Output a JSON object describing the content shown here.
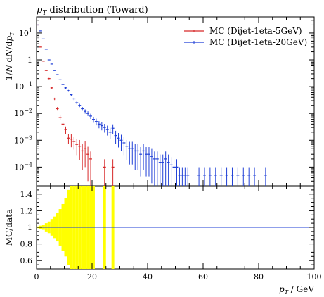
{
  "chart_data": {
    "type": "scatter",
    "title": "pT distribution (Toward)",
    "xlabel": "pT / GeV",
    "ylabel_main": "1/N dN/dpT",
    "ylabel_ratio": "MC/data",
    "xlim": [
      0,
      100
    ],
    "ylim_main": [
      2e-05,
      40
    ],
    "ylim_ratio": [
      0.5,
      1.5
    ],
    "y_scale_main": "log",
    "legend_position": "top-right",
    "x_tick_labels": [
      "0",
      "20",
      "40",
      "60",
      "80",
      "100"
    ],
    "y_tick_labels_main": [
      {
        "mant": "10",
        "exp": "1",
        "value": 10
      },
      {
        "mant": "1",
        "exp": "",
        "value": 1
      },
      {
        "mant": "10",
        "exp": "−1",
        "value": 0.1
      },
      {
        "mant": "10",
        "exp": "−2",
        "value": 0.01
      },
      {
        "mant": "10",
        "exp": "−3",
        "value": 0.001
      },
      {
        "mant": "10",
        "exp": "−4",
        "value": 0.0001
      }
    ],
    "y_tick_labels_ratio": [
      "1.4",
      "1.2",
      "1",
      "0.8",
      "0.6"
    ],
    "series": [
      {
        "name": "MC (Dijet-1eta-5GeV)",
        "color": "#d62728",
        "x": [
          0.5,
          1.5,
          2.5,
          3.5,
          4.5,
          5.5,
          6.5,
          7.5,
          8.5,
          9.5,
          10.5,
          11.5,
          12.5,
          13.5,
          14.5,
          15.5,
          16.5,
          17.5,
          18.5,
          19.5,
          24.5,
          27.5
        ],
        "y": [
          20,
          3.0,
          0.9,
          0.4,
          0.2,
          0.09,
          0.035,
          0.015,
          0.007,
          0.004,
          0.0025,
          0.0012,
          0.0011,
          0.0009,
          0.0007,
          0.0006,
          0.0004,
          0.0005,
          0.0003,
          0.0002,
          0.0001,
          0.0001
        ],
        "yerr_rel": [
          0.02,
          0.03,
          0.04,
          0.05,
          0.06,
          0.08,
          0.1,
          0.15,
          0.2,
          0.25,
          0.3,
          0.4,
          0.5,
          0.5,
          0.6,
          0.7,
          0.8,
          0.8,
          0.9,
          0.9,
          0.95,
          0.95
        ]
      },
      {
        "name": "MC (Dijet-1eta-20GeV)",
        "color": "#1f3fd6",
        "x": [
          0.5,
          1.5,
          2.5,
          3.5,
          4.5,
          5.5,
          6.5,
          7.5,
          8.5,
          9.5,
          10.5,
          11.5,
          12.5,
          13.5,
          14.5,
          15.5,
          16.5,
          17.5,
          18.5,
          19.5,
          20.5,
          21.5,
          22.5,
          23.5,
          24.5,
          25.5,
          26.5,
          27.5,
          28.5,
          29.5,
          30.5,
          31.5,
          32.5,
          33.5,
          34.5,
          35.5,
          36.5,
          37.5,
          38.5,
          39.5,
          40.5,
          41.5,
          42.5,
          43.5,
          44.5,
          45.5,
          46.5,
          47.5,
          48.5,
          49.5,
          50.5,
          51.5,
          52.5,
          53.5,
          54.5,
          58.5,
          60.5,
          62.5,
          64.5,
          66.5,
          68.5,
          70.5,
          72.5,
          74.5,
          76.5,
          78.5,
          82.5
        ],
        "y": [
          20,
          12,
          6,
          2.5,
          1.0,
          0.7,
          0.4,
          0.28,
          0.18,
          0.12,
          0.09,
          0.07,
          0.05,
          0.035,
          0.025,
          0.02,
          0.015,
          0.012,
          0.01,
          0.008,
          0.006,
          0.005,
          0.004,
          0.0035,
          0.003,
          0.0025,
          0.002,
          0.0028,
          0.0015,
          0.0012,
          0.001,
          0.0008,
          0.0006,
          0.0005,
          0.0005,
          0.0004,
          0.0004,
          0.0003,
          0.0004,
          0.0003,
          0.0003,
          0.00025,
          0.0002,
          0.0002,
          0.00015,
          0.00015,
          0.0002,
          0.00015,
          0.00012,
          0.0001,
          0.0001,
          5e-05,
          5e-05,
          5e-05,
          5e-05,
          5e-05,
          5e-05,
          5e-05,
          5e-05,
          5e-05,
          5e-05,
          5e-05,
          5e-05,
          5e-05,
          5e-05,
          5e-05,
          5e-05
        ],
        "yerr_rel": [
          0.01,
          0.01,
          0.01,
          0.02,
          0.02,
          0.03,
          0.03,
          0.04,
          0.05,
          0.06,
          0.07,
          0.08,
          0.09,
          0.1,
          0.12,
          0.14,
          0.16,
          0.18,
          0.2,
          0.22,
          0.25,
          0.28,
          0.3,
          0.33,
          0.36,
          0.4,
          0.45,
          0.4,
          0.5,
          0.55,
          0.6,
          0.65,
          0.7,
          0.75,
          0.75,
          0.8,
          0.8,
          0.85,
          0.8,
          0.85,
          0.85,
          0.9,
          0.9,
          0.9,
          0.95,
          0.95,
          0.9,
          0.95,
          0.95,
          0.95,
          0.95,
          0.98,
          0.98,
          0.98,
          0.98,
          0.98,
          0.98,
          0.98,
          0.98,
          0.98,
          0.98,
          0.98,
          0.98,
          0.98,
          0.98,
          0.98,
          0.98
        ]
      }
    ],
    "ratio_band": {
      "color": "#ffff00",
      "x_low": [
        0,
        1,
        2,
        3,
        4,
        5,
        6,
        7,
        8,
        9,
        10,
        11,
        12,
        13,
        14,
        15,
        16,
        17,
        18,
        19,
        20,
        24,
        27
      ],
      "x_high": [
        1,
        2,
        3,
        4,
        5,
        6,
        7,
        8,
        9,
        10,
        11,
        12,
        13,
        14,
        15,
        16,
        17,
        18,
        19,
        20,
        21,
        25,
        28
      ],
      "half_width": [
        0.01,
        0.02,
        0.03,
        0.05,
        0.07,
        0.1,
        0.13,
        0.17,
        0.22,
        0.28,
        0.35,
        0.45,
        0.55,
        0.6,
        0.7,
        0.8,
        0.9,
        0.95,
        1.0,
        1.0,
        1.0,
        1.0,
        1.0
      ]
    }
  }
}
